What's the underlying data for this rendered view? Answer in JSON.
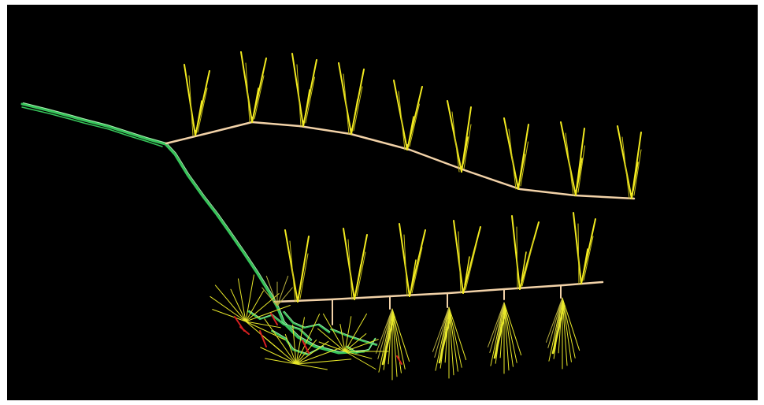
{
  "colors": {
    "background": "#000000",
    "frame": "#ffffff",
    "drift": "#f2d2a8",
    "drift_edge": "#b09070",
    "ring_hole": "#f2ea20",
    "ring_hole_dim": "#c8c018",
    "access_ramp": "#36c45a",
    "access_ramp_light": "#a8f2b0",
    "fan_hole": "#e8e82a",
    "fan_hole_dim": "#b8b040",
    "marker_red": "#d82020"
  },
  "layers": [
    {
      "name": "upper-level-drift",
      "color": "drift"
    },
    {
      "name": "lower-level-drift",
      "color": "drift"
    },
    {
      "name": "ring-drillholes",
      "color": "ring_hole"
    },
    {
      "name": "access-ramp",
      "color": "access_ramp"
    },
    {
      "name": "fan-drillholes",
      "color": "fan_hole"
    },
    {
      "name": "red-markers",
      "color": "marker_red"
    }
  ]
}
